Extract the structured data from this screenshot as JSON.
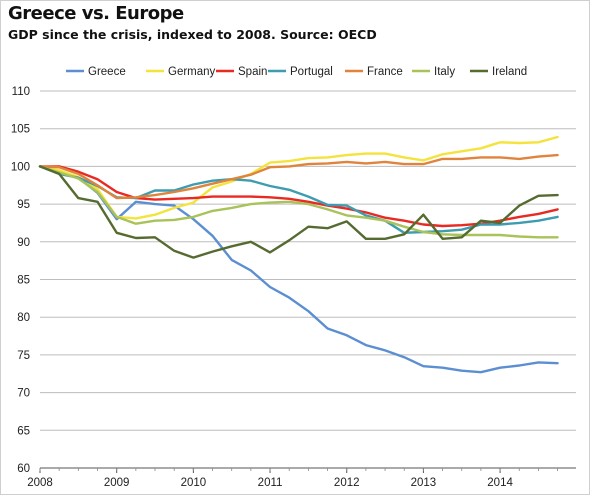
{
  "title": "Greece vs. Europe",
  "subtitle": "GDP since the crisis, indexed to 2008. Source: OECD",
  "chart_data": {
    "type": "line",
    "grid": true,
    "legend_position": "top",
    "ylim": [
      60,
      110
    ],
    "yticks": [
      60,
      65,
      70,
      75,
      80,
      85,
      90,
      95,
      100,
      105,
      110
    ],
    "xlim": [
      2008,
      2014.99
    ],
    "xticks": [
      2008,
      2009,
      2010,
      2011,
      2012,
      2013,
      2014
    ],
    "x": [
      2008.0,
      2008.25,
      2008.5,
      2008.75,
      2009.0,
      2009.25,
      2009.5,
      2009.75,
      2010.0,
      2010.25,
      2010.5,
      2010.75,
      2011.0,
      2011.25,
      2011.5,
      2011.75,
      2012.0,
      2012.25,
      2012.5,
      2012.75,
      2013.0,
      2013.25,
      2013.5,
      2013.75,
      2014.0,
      2014.25,
      2014.5,
      2014.75
    ],
    "series": [
      {
        "name": "Greece",
        "color": "#5b8fd1",
        "values": [
          100,
          99.3,
          98.5,
          96.5,
          93.0,
          95.3,
          95.0,
          94.8,
          93.0,
          90.8,
          87.6,
          86.2,
          84.0,
          82.6,
          80.8,
          78.5,
          77.6,
          76.3,
          75.6,
          74.7,
          73.5,
          73.3,
          72.9,
          72.7,
          73.3,
          73.6,
          74.0,
          73.9
        ]
      },
      {
        "name": "Germany",
        "color": "#f4e33c",
        "values": [
          100,
          99.5,
          98.6,
          97.0,
          93.3,
          93.1,
          93.6,
          94.5,
          95.2,
          97.2,
          98.0,
          99.0,
          100.5,
          100.7,
          101.1,
          101.2,
          101.5,
          101.7,
          101.7,
          101.2,
          100.8,
          101.6,
          102.0,
          102.4,
          103.2,
          103.1,
          103.2,
          103.9
        ]
      },
      {
        "name": "Spain",
        "color": "#e82a22",
        "values": [
          100,
          100.0,
          99.3,
          98.3,
          96.6,
          95.8,
          95.6,
          95.7,
          95.8,
          96.0,
          96.0,
          96.0,
          95.9,
          95.7,
          95.3,
          94.8,
          94.4,
          93.9,
          93.2,
          92.8,
          92.3,
          92.1,
          92.2,
          92.4,
          92.8,
          93.3,
          93.7,
          94.3
        ]
      },
      {
        "name": "Portugal",
        "color": "#3e9cb0",
        "values": [
          100,
          99.0,
          98.5,
          97.4,
          95.9,
          95.8,
          96.8,
          96.8,
          97.6,
          98.1,
          98.3,
          98.1,
          97.4,
          96.9,
          96.0,
          94.9,
          94.8,
          93.5,
          92.8,
          91.2,
          91.3,
          91.4,
          91.6,
          92.3,
          92.3,
          92.5,
          92.8,
          93.3
        ]
      },
      {
        "name": "France",
        "color": "#e0833c",
        "values": [
          100,
          99.9,
          99.0,
          97.5,
          95.8,
          95.9,
          96.2,
          96.6,
          97.1,
          97.7,
          98.3,
          98.9,
          99.9,
          100.0,
          100.3,
          100.4,
          100.6,
          100.4,
          100.6,
          100.3,
          100.3,
          101.0,
          101.0,
          101.2,
          101.2,
          101.0,
          101.3,
          101.5
        ]
      },
      {
        "name": "Italy",
        "color": "#a9c25a",
        "values": [
          100,
          99.2,
          98.4,
          96.6,
          93.3,
          92.4,
          92.8,
          92.9,
          93.3,
          94.1,
          94.5,
          95.0,
          95.2,
          95.3,
          95.0,
          94.3,
          93.5,
          93.2,
          92.8,
          92.0,
          91.3,
          91.0,
          90.9,
          90.9,
          90.9,
          90.7,
          90.6,
          90.6
        ]
      },
      {
        "name": "Ireland",
        "color": "#556b2f",
        "values": [
          100,
          99.0,
          95.8,
          95.3,
          91.2,
          90.5,
          90.6,
          88.8,
          87.9,
          88.7,
          89.4,
          90.0,
          88.6,
          90.2,
          92.0,
          91.8,
          92.7,
          90.4,
          90.4,
          91.0,
          93.6,
          90.4,
          90.6,
          92.8,
          92.5,
          94.8,
          96.1,
          96.2
        ]
      }
    ]
  }
}
